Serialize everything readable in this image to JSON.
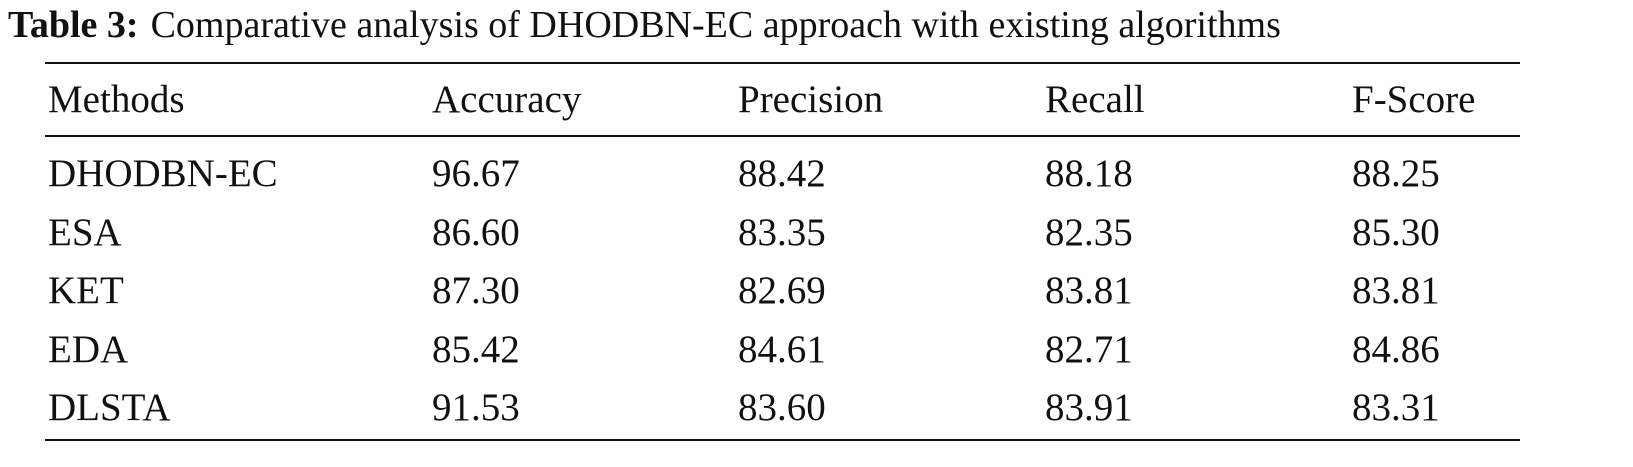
{
  "caption": {
    "label": "Table 3:",
    "text": "Comparative analysis of DHODBN-EC approach with existing algorithms"
  },
  "table": {
    "header": [
      "Methods",
      "Accuracy",
      "Precision",
      "Recall",
      "F-Score"
    ],
    "rows": [
      [
        "DHODBN-EC",
        "96.67",
        "88.42",
        "88.18",
        "88.25"
      ],
      [
        "ESA",
        "86.60",
        "83.35",
        "82.35",
        "85.30"
      ],
      [
        "KET",
        "87.30",
        "82.69",
        "83.81",
        "83.81"
      ],
      [
        "EDA",
        "85.42",
        "84.61",
        "82.71",
        "84.86"
      ],
      [
        "DLSTA",
        "91.53",
        "83.60",
        "83.91",
        "83.31"
      ]
    ]
  }
}
